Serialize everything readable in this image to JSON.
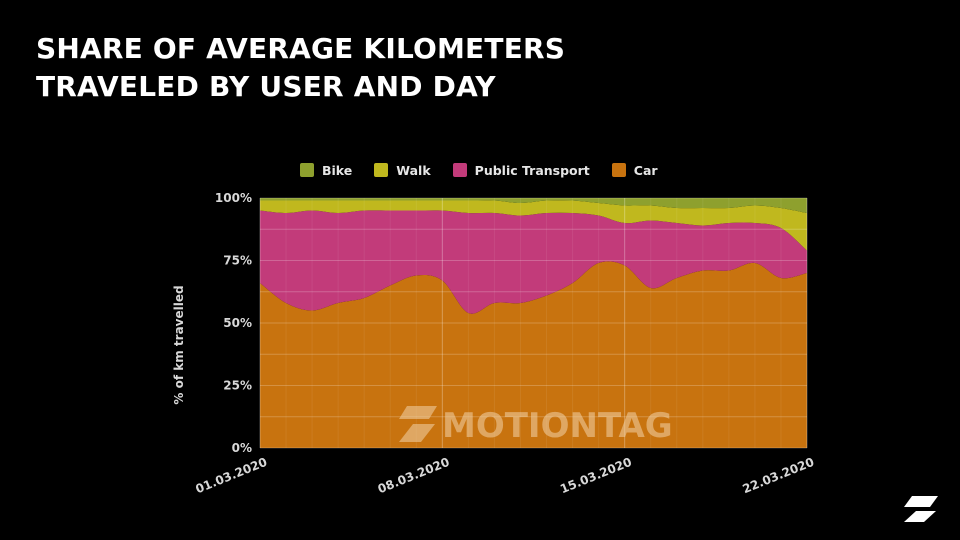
{
  "page": {
    "title_lines": [
      "SHARE OF AVERAGE KILOMETERS",
      "TRAVELED BY USER AND DAY"
    ]
  },
  "chart_data": {
    "type": "area",
    "stacked": true,
    "normalized": true,
    "ylabel": "% of km travelled",
    "xlabel": "",
    "ylim": [
      0,
      100
    ],
    "y_ticks": [
      "0%",
      "25%",
      "50%",
      "75%",
      "100%"
    ],
    "y_tick_values": [
      0,
      25,
      50,
      75,
      100
    ],
    "x_ticks": [
      "01.03.2020",
      "08.03.2020",
      "15.03.2020",
      "22.03.2020"
    ],
    "x_tick_index": [
      0,
      7,
      14,
      21
    ],
    "days": [
      "01.03",
      "02.03",
      "03.03",
      "04.03",
      "05.03",
      "06.03",
      "07.03",
      "08.03",
      "09.03",
      "10.03",
      "11.03",
      "12.03",
      "13.03",
      "14.03",
      "15.03",
      "16.03",
      "17.03",
      "18.03",
      "19.03",
      "20.03",
      "21.03",
      "22.03"
    ],
    "series": [
      {
        "name": "Car",
        "color": "#c8730f",
        "values": [
          66,
          58,
          55,
          58,
          60,
          65,
          69,
          67,
          54,
          58,
          58,
          61,
          66,
          74,
          73,
          64,
          68,
          71,
          71,
          74,
          68,
          70
        ]
      },
      {
        "name": "Public Transport",
        "color": "#c23b7a",
        "values": [
          29,
          36,
          40,
          36,
          35,
          30,
          26,
          28,
          40,
          36,
          35,
          33,
          28,
          19,
          17,
          27,
          22,
          18,
          19,
          16,
          20,
          9
        ]
      },
      {
        "name": "Walk",
        "color": "#c0b81e",
        "values": [
          4,
          5,
          4,
          5,
          4,
          4,
          4,
          4,
          5,
          5,
          5,
          5,
          5,
          5,
          7,
          6,
          6,
          7,
          6,
          7,
          8,
          15
        ]
      },
      {
        "name": "Bike",
        "color": "#8ea02e",
        "values": [
          1,
          1,
          1,
          1,
          1,
          1,
          1,
          1,
          1,
          1,
          2,
          1,
          1,
          2,
          3,
          3,
          4,
          4,
          4,
          3,
          4,
          6
        ]
      }
    ],
    "legend": [
      {
        "name": "Bike",
        "color": "#8ea02e"
      },
      {
        "name": "Walk",
        "color": "#c0b81e"
      },
      {
        "name": "Public Transport",
        "color": "#c23b7a"
      },
      {
        "name": "Car",
        "color": "#c8730f"
      }
    ],
    "legend_position": "top",
    "grid": true,
    "watermark": "MOTIONTAG"
  }
}
